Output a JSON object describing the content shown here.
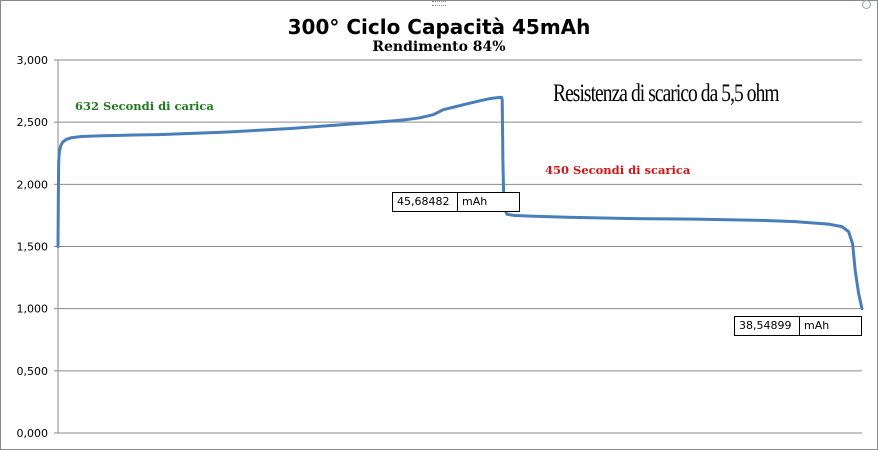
{
  "chart_data": {
    "type": "line",
    "title": "300° Ciclo Capacità 45mAh",
    "subtitle": "Rendimento 84%",
    "xlabel": "",
    "ylabel": "",
    "ylim": [
      0,
      3
    ],
    "y_ticks": [
      "0,000",
      "0,500",
      "1,000",
      "1,500",
      "2,000",
      "2,500",
      "3,000"
    ],
    "grid": "horizontal",
    "legend": "none",
    "series": [
      {
        "color": "#4a7ebb",
        "points": [
          [
            0,
            1.5
          ],
          [
            0.5,
            1.9
          ],
          [
            1,
            2.18
          ],
          [
            2,
            2.26
          ],
          [
            4,
            2.31
          ],
          [
            7,
            2.34
          ],
          [
            12,
            2.36
          ],
          [
            20,
            2.375
          ],
          [
            35,
            2.385
          ],
          [
            60,
            2.39
          ],
          [
            100,
            2.395
          ],
          [
            150,
            2.4
          ],
          [
            200,
            2.41
          ],
          [
            250,
            2.42
          ],
          [
            300,
            2.435
          ],
          [
            350,
            2.45
          ],
          [
            400,
            2.47
          ],
          [
            450,
            2.49
          ],
          [
            500,
            2.51
          ],
          [
            520,
            2.52
          ],
          [
            540,
            2.535
          ],
          [
            560,
            2.56
          ],
          [
            575,
            2.6
          ],
          [
            590,
            2.62
          ],
          [
            605,
            2.64
          ],
          [
            620,
            2.66
          ],
          [
            632,
            2.675
          ],
          [
            645,
            2.69
          ],
          [
            662,
            2.7
          ],
          [
            663,
            2.68
          ],
          [
            663.5,
            2.45
          ],
          [
            664,
            2.2
          ],
          [
            665,
            1.95
          ],
          [
            667,
            1.8
          ],
          [
            670,
            1.76
          ],
          [
            680,
            1.75
          ],
          [
            700,
            1.745
          ],
          [
            760,
            1.735
          ],
          [
            850,
            1.725
          ],
          [
            950,
            1.72
          ],
          [
            1050,
            1.71
          ],
          [
            1100,
            1.7
          ],
          [
            1150,
            1.68
          ],
          [
            1170,
            1.66
          ],
          [
            1180,
            1.62
          ],
          [
            1186,
            1.52
          ],
          [
            1190,
            1.3
          ],
          [
            1195,
            1.12
          ],
          [
            1200,
            1.0
          ]
        ]
      }
    ],
    "annotations": {
      "charge_time": "632 Secondi di carica",
      "discharge_time": "450 Secondi di scarica",
      "resistance": "Resistenza di scarico da 5,5 ohm",
      "charge_capacity_value": "45,68482",
      "discharge_capacity_value": "38,54899",
      "capacity_unit": "mAh"
    },
    "colors": {
      "line": "#4a7ebb",
      "grid": "#8a8a8a",
      "charge_text": "#1f7a1f",
      "discharge_text": "#d21414"
    }
  }
}
